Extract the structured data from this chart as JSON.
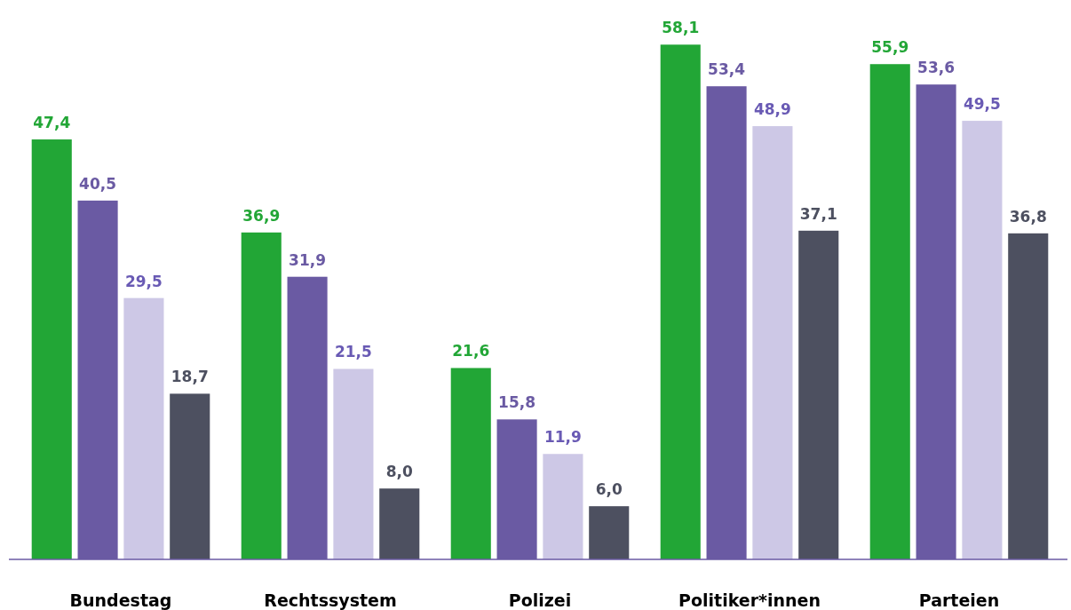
{
  "chart_data": {
    "type": "bar",
    "categories": [
      "Bundestag",
      "Rechtssystem",
      "Polizei",
      "Politiker*innen",
      "Parteien"
    ],
    "series": [
      {
        "color": "#22a636",
        "values": [
          47.4,
          36.9,
          21.6,
          58.1,
          55.9
        ],
        "value_labels": [
          "47,4",
          "36,9",
          "21,6",
          "58,1",
          "55,9"
        ]
      },
      {
        "color": "#6a5aa3",
        "values": [
          40.5,
          31.9,
          15.8,
          53.4,
          53.6
        ],
        "value_labels": [
          "40,5",
          "31,9",
          "15,8",
          "53,4",
          "53,6"
        ]
      },
      {
        "color": "#cdc8e6",
        "values": [
          29.5,
          21.5,
          11.9,
          48.9,
          49.5
        ],
        "value_labels": [
          "29,5",
          "21,5",
          "11,9",
          "48,9",
          "49,5"
        ]
      },
      {
        "color": "#4d5060",
        "values": [
          18.7,
          8.0,
          6.0,
          37.1,
          36.8
        ],
        "value_labels": [
          "18,7",
          "8,0",
          "6,0",
          "37,1",
          "36,8"
        ]
      }
    ]
  }
}
